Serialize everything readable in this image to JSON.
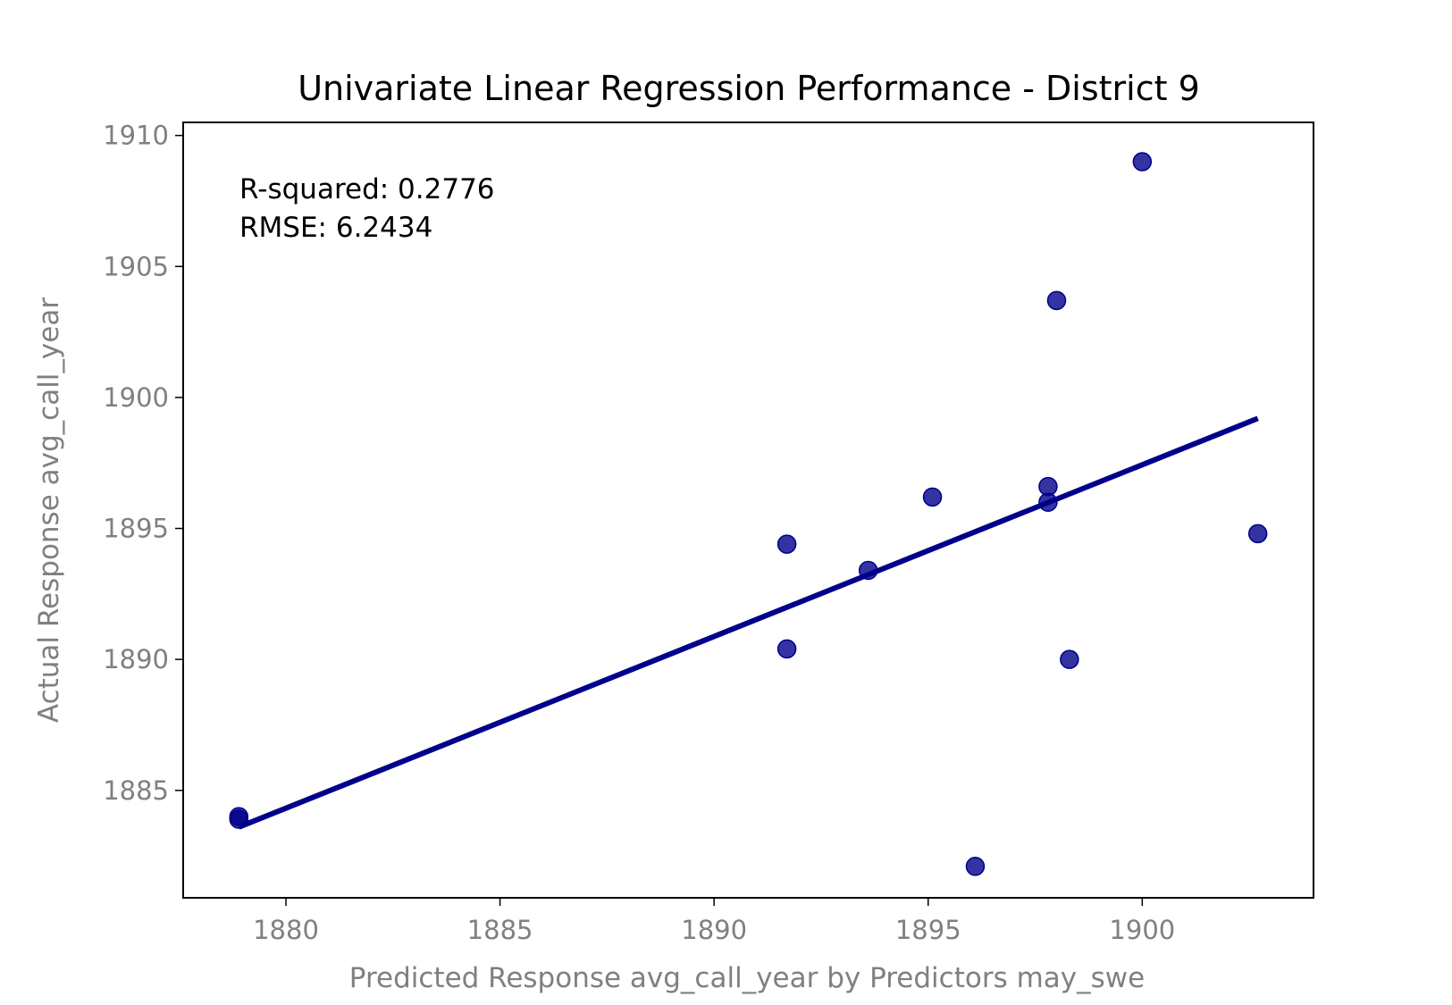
{
  "chart_data": {
    "type": "scatter",
    "title": "Univariate Linear Regression Performance - District 9",
    "xlabel": "Predicted Response avg_call_year by Predictors may_swe",
    "ylabel": "Actual Response avg_call_year",
    "xlim": [
      1877.6,
      1904.0
    ],
    "ylim": [
      1880.9,
      1910.5
    ],
    "xticks": [
      1880,
      1885,
      1890,
      1895,
      1900
    ],
    "yticks": [
      1885,
      1890,
      1895,
      1900,
      1905,
      1910
    ],
    "grid": false,
    "annotations": [
      "R-squared: 0.2776",
      "RMSE: 6.2434"
    ],
    "points": [
      {
        "x": 1878.9,
        "y": 1884.0
      },
      {
        "x": 1878.9,
        "y": 1883.9
      },
      {
        "x": 1891.7,
        "y": 1894.4
      },
      {
        "x": 1891.7,
        "y": 1890.4
      },
      {
        "x": 1893.6,
        "y": 1893.4
      },
      {
        "x": 1895.1,
        "y": 1896.2
      },
      {
        "x": 1896.1,
        "y": 1882.1
      },
      {
        "x": 1897.8,
        "y": 1896.6
      },
      {
        "x": 1897.8,
        "y": 1896.0
      },
      {
        "x": 1898.0,
        "y": 1903.7
      },
      {
        "x": 1898.3,
        "y": 1890.0
      },
      {
        "x": 1900.0,
        "y": 1909.0
      },
      {
        "x": 1902.7,
        "y": 1894.8
      }
    ],
    "fit_line": {
      "x": [
        1878.9,
        1902.7
      ],
      "y": [
        1883.6,
        1899.2
      ]
    },
    "colors": {
      "points": "#00008b",
      "line": "#00008b",
      "axes": "#000000",
      "ticks": "#808080"
    }
  }
}
